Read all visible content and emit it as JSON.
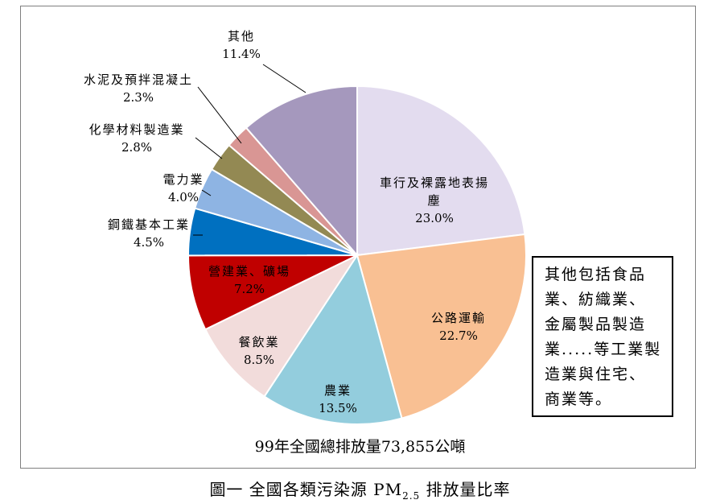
{
  "chart_data": {
    "type": "pie",
    "start": "top, clockwise",
    "slices": [
      {
        "label_lines": [
          "車行及裸露地表揚",
          "塵"
        ],
        "value_text": "23.0%",
        "value": 23.0,
        "color": "#e3dcef",
        "label_color": "#000000"
      },
      {
        "label_lines": [
          "公路運輸"
        ],
        "value_text": "22.7%",
        "value": 22.7,
        "color": "#f9c093",
        "label_color": "#000000"
      },
      {
        "label_lines": [
          "農業"
        ],
        "value_text": "13.5%",
        "value": 13.5,
        "color": "#93cddd",
        "label_color": "#000000"
      },
      {
        "label_lines": [
          "餐飲業"
        ],
        "value_text": "8.5%",
        "value": 8.5,
        "color": "#f2dcdb",
        "label_color": "#000000"
      },
      {
        "label_lines": [
          "營建業、礦場"
        ],
        "value_text": "7.2%",
        "value": 7.2,
        "color": "#c00000",
        "label_color": "#000000"
      },
      {
        "label_lines": [
          "鋼鐵基本工業"
        ],
        "value_text": "4.5%",
        "value": 4.5,
        "color": "#0070c0",
        "label_color": "#000000"
      },
      {
        "label_lines": [
          "電力業"
        ],
        "value_text": "4.0%",
        "value": 4.0,
        "color": "#8eb4e3",
        "label_color": "#000000"
      },
      {
        "label_lines": [
          "化學材料製造業"
        ],
        "value_text": "2.8%",
        "value": 2.8,
        "color": "#938953",
        "label_color": "#000000"
      },
      {
        "label_lines": [
          "水泥及預拌混凝土"
        ],
        "value_text": "2.3%",
        "value": 2.3,
        "color": "#d99694",
        "label_color": "#000000"
      },
      {
        "label_lines": [
          "其他"
        ],
        "value_text": "11.4%",
        "value": 11.4,
        "color": "#a598bd",
        "label_color": "#000000"
      }
    ]
  },
  "total_text": "99年全國總排放量73,855公噸",
  "note_lines": [
    "其他包括食品",
    "業、紡織業、",
    "金屬製品製造",
    "業.....等工業製",
    "造業與住宅、",
    "商業等。"
  ],
  "caption": {
    "prefix": "圖一  全國各類污染源 PM",
    "sub": "2.5",
    "suffix": " 排放量比率"
  }
}
